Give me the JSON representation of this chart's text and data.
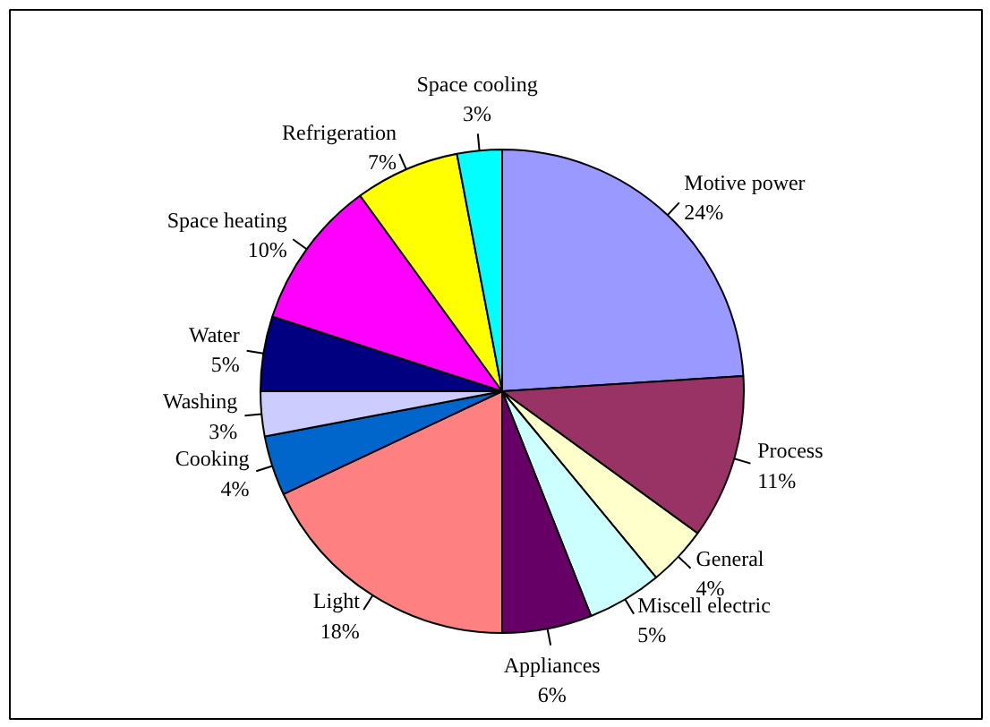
{
  "chart_data": {
    "type": "pie",
    "categories": [
      "Motive power",
      "Process",
      "General",
      "Miscell electric",
      "Appliances",
      "Light",
      "Cooking",
      "Washing",
      "Water",
      "Space heating",
      "Refrigeration",
      "Space cooling"
    ],
    "values": [
      24,
      11,
      4,
      5,
      6,
      18,
      4,
      3,
      5,
      10,
      7,
      3
    ],
    "colors": [
      "#9999ff",
      "#993366",
      "#ffffcc",
      "#ccffff",
      "#660066",
      "#ff8080",
      "#0066cc",
      "#ccccff",
      "#000080",
      "#ff00ff",
      "#ffff00",
      "#00ffff"
    ],
    "value_labels": [
      "24%",
      "11%",
      "4%",
      "5%",
      "6%",
      "18%",
      "4%",
      "3%",
      "5%",
      "10%",
      "7%",
      "3%"
    ]
  }
}
